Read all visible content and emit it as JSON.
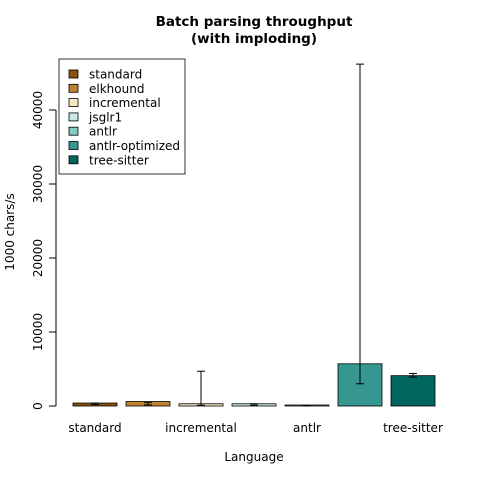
{
  "chart_data": {
    "type": "bar",
    "title": [
      "Batch parsing throughput",
      "(with imploding)"
    ],
    "xlabel": "Language",
    "ylabel": "1000 chars/s",
    "ylim": [
      0,
      46500
    ],
    "yticks": [
      0,
      10000,
      20000,
      30000,
      40000
    ],
    "ytick_labels": [
      "0",
      "10000",
      "20000",
      "30000",
      "40000"
    ],
    "xtick_labels": [
      {
        "label": "standard",
        "index": 0
      },
      {
        "label": "incremental",
        "index": 2
      },
      {
        "label": "antlr",
        "index": 4
      },
      {
        "label": "tree-sitter",
        "index": 6
      }
    ],
    "legend_position": "top-left",
    "series": [
      {
        "name": "standard",
        "color": "#8c510a",
        "value": 400,
        "err_low": 200,
        "err_high": 400
      },
      {
        "name": "elkhound",
        "color": "#bf812d",
        "value": 600,
        "err_low": 150,
        "err_high": 500
      },
      {
        "name": "incremental",
        "color": "#f6e8c3",
        "value": 300,
        "err_low": 100,
        "err_high": 4700
      },
      {
        "name": "jsglr1",
        "color": "#c7eae5",
        "value": 300,
        "err_low": 100,
        "err_high": 300
      },
      {
        "name": "antlr",
        "color": "#80cdc1",
        "value": 50,
        "err_low": 20,
        "err_high": 80
      },
      {
        "name": "antlr-optimized",
        "color": "#35978f",
        "value": 5700,
        "err_low": 3000,
        "err_high": 46200
      },
      {
        "name": "tree-sitter",
        "color": "#01665e",
        "value": 4100,
        "err_low": 3900,
        "err_high": 4400
      }
    ]
  }
}
